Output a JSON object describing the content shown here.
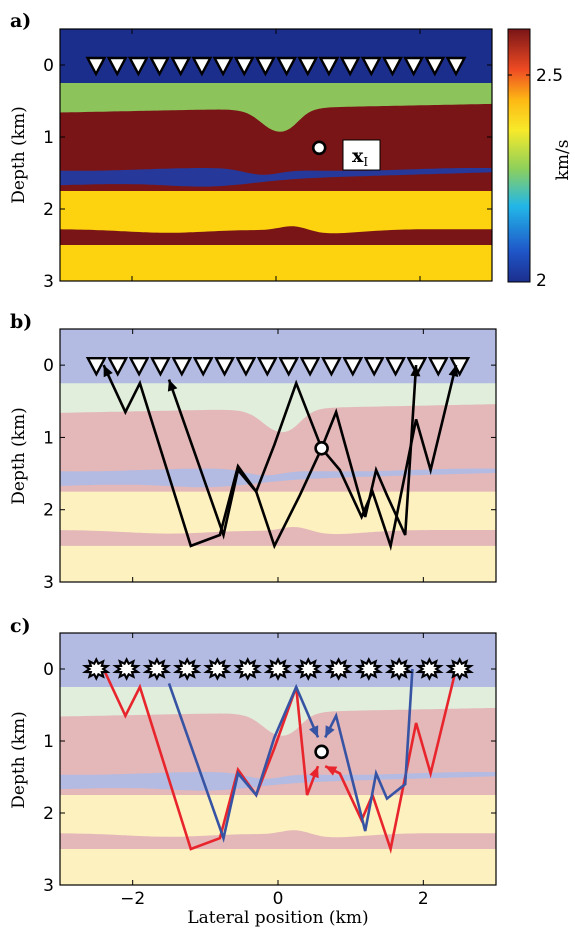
{
  "figure": {
    "panels": [
      {
        "label": "a)"
      },
      {
        "label": "b)"
      },
      {
        "label": "c)"
      }
    ],
    "depth_axis_label": "Depth (km)",
    "lateral_axis_label": "Lateral position (km)",
    "depth_ticks": [
      "0",
      "1",
      "2",
      "3"
    ],
    "lateral_ticks": [
      "−2",
      "0",
      "2"
    ],
    "colorbar": {
      "unit_label": "km/s",
      "ticks": [
        "2.5",
        "2"
      ],
      "range": [
        2.0,
        2.65
      ]
    },
    "point_label_main": "x",
    "point_label_sub": "I",
    "colors": {
      "top_layer": "#1c2e8c",
      "green_layer": "#8cc35a",
      "dark_red_layer": "#7a1517",
      "thin_blue_layer": "#26389a",
      "yellow_layer": "#fdd20f",
      "faded_blue": "#b3bbe2",
      "faded_green": "#e0eedb",
      "faded_red": "#e4b7b8",
      "faded_yellow": "#fdf1c0",
      "red_path": "#e8252c",
      "blue_path": "#3753a4"
    }
  },
  "chart_data": [
    {
      "type": "heatmap",
      "title": "a)",
      "xlabel": "",
      "ylabel": "Depth (km)",
      "xlim": [
        -3,
        3
      ],
      "ylim": [
        3,
        -0.5
      ],
      "colorbar_label": "km/s",
      "colorbar_range": [
        2.0,
        2.65
      ],
      "layers": [
        {
          "top_km": -0.5,
          "velocity_km_s": 2.0
        },
        {
          "top_km": 0.25,
          "velocity_km_s": 2.35
        },
        {
          "top_km": 0.6,
          "velocity_km_s": 2.6
        },
        {
          "top_km": 1.45,
          "velocity_km_s": 2.0
        },
        {
          "top_km": 1.6,
          "velocity_km_s": 2.6
        },
        {
          "top_km": 1.75,
          "velocity_km_s": 2.45
        },
        {
          "top_km": 2.25,
          "velocity_km_s": 2.6
        },
        {
          "top_km": 2.5,
          "velocity_km_s": 2.45
        }
      ],
      "receivers_x_km": [
        -2.5,
        2.5
      ],
      "receiver_count": 18,
      "point": {
        "x_km": 0.6,
        "depth_km": 1.15,
        "label": "xI"
      }
    },
    {
      "type": "line",
      "title": "b)",
      "ylabel": "Depth (km)",
      "xlim": [
        -3,
        3
      ],
      "ylim": [
        3,
        -0.5
      ],
      "series": [
        {
          "x": [
            -2.4,
            -2.1,
            -1.9,
            -1.2,
            -0.8,
            -0.55,
            -0.3,
            -0.05,
            0.25,
            0.6
          ],
          "y": [
            0,
            0.65,
            0.25,
            2.5,
            2.35,
            1.4,
            1.75,
            1.1,
            0.25,
            1.15
          ]
        },
        {
          "x": [
            0.6,
            0.8,
            1.2,
            1.35,
            1.5,
            1.75,
            1.9
          ],
          "y": [
            1.15,
            0.65,
            2.1,
            1.45,
            1.8,
            2.35,
            0
          ]
        },
        {
          "x": [
            -1.5,
            -0.75,
            -0.55,
            -0.3,
            -0.05,
            0.3,
            0.6
          ],
          "y": [
            0.2,
            2.35,
            1.45,
            1.75,
            2.5,
            1.8,
            1.15
          ]
        },
        {
          "x": [
            0.6,
            0.85,
            1.15,
            1.3,
            1.55,
            1.9,
            2.1,
            2.45
          ],
          "y": [
            1.15,
            1.45,
            2.1,
            1.75,
            2.5,
            0.75,
            1.45,
            0
          ]
        }
      ]
    },
    {
      "type": "line",
      "title": "c)",
      "xlabel": "Lateral position (km)",
      "ylabel": "Depth (km)",
      "xlim": [
        -3,
        3
      ],
      "ylim": [
        3,
        -0.5
      ],
      "series": [
        {
          "color": "red",
          "x": [
            -2.4,
            -2.1,
            -1.9,
            -1.2,
            -0.8,
            -0.55,
            -0.3,
            -0.05,
            0.25,
            0.4,
            0.55
          ],
          "y": [
            0,
            0.65,
            0.25,
            2.5,
            2.35,
            1.4,
            1.75,
            1.1,
            0.25,
            1.75,
            1.35
          ]
        },
        {
          "color": "red",
          "x": [
            0.65,
            0.85,
            1.15,
            1.3,
            1.55,
            1.9,
            2.1,
            2.45
          ],
          "y": [
            1.35,
            1.45,
            2.1,
            1.75,
            2.5,
            0.75,
            1.45,
            0
          ]
        },
        {
          "color": "blue",
          "x": [
            -1.5,
            -0.75,
            -0.55,
            -0.3,
            -0.05,
            0.25,
            0.55
          ],
          "y": [
            0.2,
            2.35,
            1.45,
            1.75,
            0.95,
            0.25,
            0.95
          ]
        },
        {
          "color": "blue",
          "x": [
            0.65,
            0.8,
            1.2,
            1.35,
            1.5,
            1.75,
            1.85
          ],
          "y": [
            0.95,
            0.65,
            2.25,
            1.45,
            1.8,
            1.6,
            0
          ]
        }
      ],
      "sources_x_km": [
        -2.5,
        2.5
      ],
      "source_count": 13
    }
  ]
}
